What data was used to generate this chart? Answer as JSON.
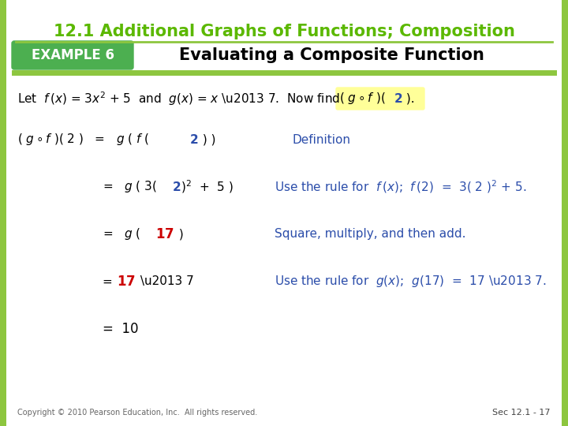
{
  "title": "12.1 Additional Graphs of Functions; Composition",
  "title_color": "#5BB800",
  "example_label": "EXAMPLE 6",
  "example_bg": "#4CAF50",
  "example_text_color": "#ffffff",
  "subtitle": "Evaluating a Composite Function",
  "subtitle_color": "#000000",
  "separator_color": "#8DC63F",
  "bg_color": "#ffffff",
  "blue_color": "#2B4DAA",
  "red_color": "#CC0000",
  "green_color": "#4CAF50",
  "highlight_color": "#FFFF99",
  "border_color": "#8DC63F",
  "footer_left": "Copyright © 2010 Pearson Education, Inc.  All rights reserved.",
  "footer_right": "Sec 12.1 - 17"
}
